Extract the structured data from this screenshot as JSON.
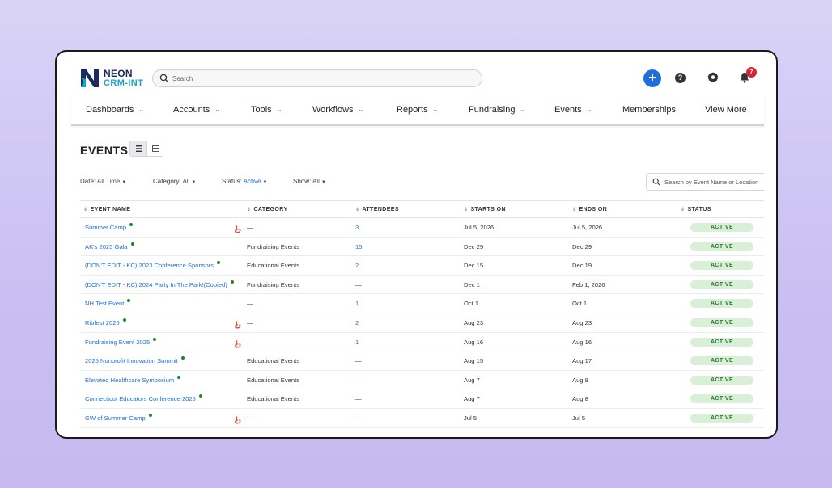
{
  "brand": {
    "line1": "NEON",
    "line2": "CRM-INT"
  },
  "search": {
    "placeholder": "Search"
  },
  "header": {
    "notification_count": "7",
    "plus_label": "+",
    "help_label": "?"
  },
  "nav": {
    "items": [
      {
        "label": "Dashboards",
        "has_menu": true
      },
      {
        "label": "Accounts",
        "has_menu": true
      },
      {
        "label": "Tools",
        "has_menu": true
      },
      {
        "label": "Workflows",
        "has_menu": true
      },
      {
        "label": "Reports",
        "has_menu": true
      },
      {
        "label": "Fundraising",
        "has_menu": true
      },
      {
        "label": "Events",
        "has_menu": true
      },
      {
        "label": "Memberships",
        "has_menu": false
      },
      {
        "label": "View More",
        "has_menu": false
      }
    ]
  },
  "page": {
    "title": "EVENTS"
  },
  "filters": {
    "date": {
      "label": "Date:",
      "value": "All Time"
    },
    "category": {
      "label": "Category:",
      "value": "All"
    },
    "status": {
      "label": "Status:",
      "value": "Active"
    },
    "show": {
      "label": "Show:",
      "value": "All"
    }
  },
  "event_search": {
    "placeholder": "Search by Event Name or Location"
  },
  "table": {
    "columns": [
      "EVENT NAME",
      "CATEGORY",
      "ATTENDEES",
      "STARTS ON",
      "ENDS ON",
      "STATUS"
    ],
    "rows": [
      {
        "name": "Summer Camp",
        "category": "—",
        "attendees": "3",
        "starts": "Jul 5, 2026",
        "ends": "Jul 5, 2026",
        "status": "ACTIVE",
        "flag": true
      },
      {
        "name": "AK's 2025 Gala",
        "category": "Fundraising Events",
        "attendees": "15",
        "starts": "Dec 29",
        "ends": "Dec 29",
        "status": "ACTIVE",
        "flag": false
      },
      {
        "name": "(DON'T EDIT - KC) 2023 Conference Sponsors",
        "category": "Educational Events",
        "attendees": "2",
        "starts": "Dec 15",
        "ends": "Dec 19",
        "status": "ACTIVE",
        "flag": false
      },
      {
        "name": "(DON'T EDIT - KC) 2024 Party In The Park!(Copied)",
        "category": "Fundraising Events",
        "attendees": "—",
        "starts": "Dec 1",
        "ends": "Feb 1, 2026",
        "status": "ACTIVE",
        "flag": false
      },
      {
        "name": "NH Test Event",
        "category": "—",
        "attendees": "1",
        "starts": "Oct 1",
        "ends": "Oct 1",
        "status": "ACTIVE",
        "flag": false
      },
      {
        "name": "Ribfest 2025",
        "category": "—",
        "attendees": "2",
        "starts": "Aug 23",
        "ends": "Aug 23",
        "status": "ACTIVE",
        "flag": true
      },
      {
        "name": "Fundraising Event 2025",
        "category": "—",
        "attendees": "1",
        "starts": "Aug 16",
        "ends": "Aug 16",
        "status": "ACTIVE",
        "flag": true
      },
      {
        "name": "2025 Nonprofit Innovation Summit",
        "category": "Educational Events",
        "attendees": "—",
        "starts": "Aug 15",
        "ends": "Aug 17",
        "status": "ACTIVE",
        "flag": false
      },
      {
        "name": "Elevated Healthcare Symposium",
        "category": "Educational Events",
        "attendees": "—",
        "starts": "Aug 7",
        "ends": "Aug 8",
        "status": "ACTIVE",
        "flag": false
      },
      {
        "name": "Connecticut Educators Conference 2025",
        "category": "Educational Events",
        "attendees": "—",
        "starts": "Aug 7",
        "ends": "Aug 8",
        "status": "ACTIVE",
        "flag": false
      },
      {
        "name": "GW of Summer Camp",
        "category": "—",
        "attendees": "—",
        "starts": "Jul 5",
        "ends": "Jul 5",
        "status": "ACTIVE",
        "flag": true
      }
    ]
  },
  "colors": {
    "accent": "#1e6fd9",
    "active_bg": "#d9efd8",
    "active_text": "#2b7a2b",
    "badge": "#d3263a",
    "flag": "#e0483e",
    "dot": "#1b8a2a"
  },
  "icons": [
    "search-icon",
    "plus-icon",
    "help-icon",
    "gear-icon",
    "bell-icon",
    "list-view-icon",
    "card-view-icon",
    "sort-icon",
    "flag-icon"
  ]
}
